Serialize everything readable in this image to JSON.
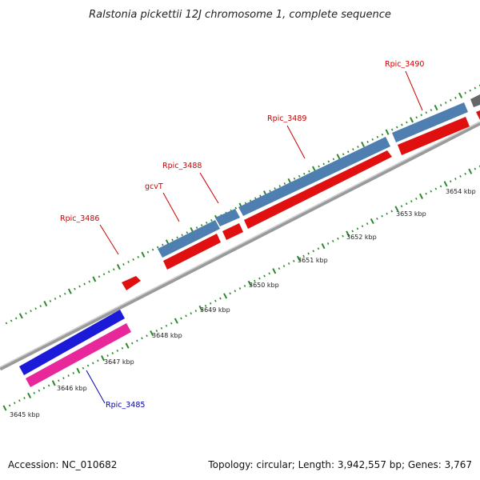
{
  "title": "Ralstonia pickettii 12J chromosome 1, complete sequence",
  "footer": {
    "accession": "Accession: NC_010682",
    "summary": "Topology: circular; Length: 3,942,557 bp; Genes: 3,767"
  },
  "colors": {
    "backbone": "#9a9a9a",
    "tick_major": "#2a8a2a",
    "tick_minor": "#2a8a2a",
    "forward_other": "#4e7fb0",
    "forward_selected": "#1a1ad8",
    "reverse_other": "#e01010",
    "reverse_selected": "#e8289a",
    "label_other": "#cc0000",
    "label_selected": "#0000aa",
    "gray_feature": "#666666"
  },
  "scale": {
    "unit": "kbp",
    "labels": [
      "3645 kbp",
      "3646 kbp",
      "3647 kbp",
      "3648 kbp",
      "3649 kbp",
      "3650 kbp",
      "3651 kbp",
      "3652 kbp",
      "3653 kbp",
      "3654 kbp"
    ]
  },
  "genes": [
    {
      "name": "Rpic_3485",
      "strand": "+",
      "selected": true
    },
    {
      "name": "Rpic_3485",
      "strand": "-",
      "selected": true,
      "labeled": true
    },
    {
      "name": "Rpic_3486",
      "strand": "-",
      "selected": false,
      "labeled": true
    },
    {
      "name": "gcvT",
      "strand": "+",
      "selected": false,
      "labeled": true
    },
    {
      "name": "Rpic_3488",
      "strand": "+",
      "selected": false,
      "labeled": true
    },
    {
      "name": "Rpic_3489",
      "strand": "+",
      "selected": false,
      "labeled": true
    },
    {
      "name": "Rpic_3490",
      "strand": "+",
      "selected": false,
      "labeled": true
    }
  ]
}
